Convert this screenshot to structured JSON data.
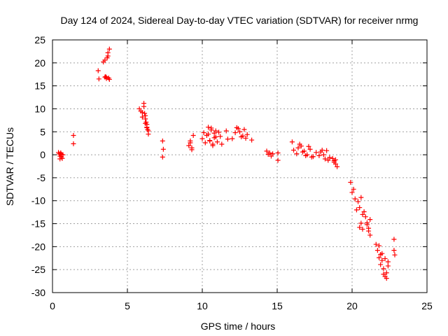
{
  "chart_data": {
    "type": "scatter",
    "title": "Day 124 of 2024, Sidereal Day-to-day VTEC variation (SDTVAR) for receiver nrmg",
    "xlabel": "GPS time / hours",
    "ylabel": "SDTVAR / TECUs",
    "xlim": [
      0,
      25
    ],
    "ylim": [
      -30,
      25
    ],
    "xticks": [
      0,
      5,
      10,
      15,
      20,
      25
    ],
    "yticks": [
      -30,
      -25,
      -20,
      -15,
      -10,
      -5,
      0,
      5,
      10,
      15,
      20,
      25
    ],
    "x_tick_labels": [
      "0",
      "5",
      "10",
      "15",
      "20",
      "25"
    ],
    "y_tick_labels": [
      "-30",
      "-25",
      "-20",
      "-15",
      "-10",
      "-5",
      "0",
      "5",
      "10",
      "15",
      "20",
      "25"
    ],
    "grid": true,
    "marker": "+",
    "color": "#ff0000",
    "series": [
      {
        "name": "SDTVAR",
        "x": [
          0.4,
          0.45,
          0.5,
          0.55,
          0.6,
          0.65,
          0.7,
          0.5,
          0.55,
          0.6,
          1.4,
          1.4,
          3.05,
          3.1,
          3.4,
          3.5,
          3.55,
          3.6,
          3.65,
          3.7,
          3.75,
          3.8,
          3.5,
          3.6,
          3.7,
          3.8,
          5.8,
          5.9,
          6.0,
          6.1,
          6.15,
          6.2,
          6.25,
          6.3,
          6.35,
          6.4,
          6.0,
          6.1,
          6.2,
          6.3,
          6.4,
          6.2,
          6.3,
          7.35,
          7.4,
          7.35,
          9.1,
          9.2,
          9.3,
          9.4,
          9.2,
          9.3,
          10.0,
          10.1,
          10.2,
          10.3,
          10.4,
          10.5,
          10.6,
          10.7,
          10.8,
          10.9,
          11.0,
          11.1,
          10.4,
          10.5,
          10.6,
          10.7,
          10.8,
          10.9,
          11.2,
          11.3,
          11.6,
          11.7,
          12.0,
          12.2,
          12.4,
          12.6,
          12.8,
          13.0,
          12.3,
          12.5,
          12.7,
          12.9,
          13.3,
          14.3,
          14.4,
          14.5,
          14.6,
          14.7,
          15.05,
          15.05,
          16.0,
          16.1,
          16.3,
          16.5,
          16.7,
          16.9,
          17.1,
          17.3,
          16.4,
          16.6,
          16.8,
          17.0,
          17.2,
          17.4,
          17.6,
          17.8,
          18.0,
          18.2,
          18.4,
          17.9,
          18.1,
          18.3,
          18.5,
          18.7,
          18.8,
          18.9,
          19.0,
          18.8,
          18.9,
          19.9,
          20.0,
          20.1,
          20.2,
          20.3,
          20.4,
          20.5,
          20.6,
          20.7,
          20.8,
          20.5,
          20.6,
          20.7,
          20.9,
          21.0,
          21.1,
          21.2,
          21.0,
          21.1,
          21.2,
          21.6,
          21.7,
          21.8,
          21.9,
          22.0,
          22.1,
          22.2,
          22.3,
          22.4,
          21.8,
          21.9,
          22.0,
          22.1,
          22.2,
          22.3,
          22.4,
          22.8,
          22.8,
          22.85
        ],
        "y": [
          0.5,
          0.2,
          -0.3,
          0.3,
          -0.5,
          -0.8,
          0.0,
          -0.9,
          0.4,
          0.1,
          4.2,
          2.4,
          18.3,
          16.5,
          20.2,
          20.6,
          17.0,
          16.6,
          21.1,
          22.2,
          16.7,
          23.0,
          16.9,
          16.8,
          21.5,
          16.4,
          10.0,
          9.5,
          8.2,
          11.2,
          9.0,
          8.5,
          7.1,
          6.6,
          5.5,
          4.5,
          9.2,
          10.5,
          7.8,
          6.0,
          5.2,
          6.8,
          5.9,
          3.0,
          1.2,
          -0.5,
          2.0,
          3.0,
          1.5,
          4.2,
          2.6,
          1.1,
          3.5,
          4.8,
          2.6,
          4.2,
          6.0,
          3.1,
          5.4,
          2.3,
          4.7,
          3.9,
          2.8,
          4.9,
          4.5,
          3.0,
          5.8,
          2.0,
          3.7,
          5.2,
          4.0,
          2.3,
          5.2,
          3.4,
          3.5,
          4.8,
          5.7,
          3.9,
          5.5,
          4.4,
          5.9,
          5.0,
          4.1,
          3.6,
          3.2,
          0.8,
          0.1,
          0.4,
          -0.3,
          0.2,
          0.4,
          -1.2,
          2.8,
          1.0,
          0.2,
          2.3,
          0.6,
          -0.2,
          1.8,
          -0.5,
          1.5,
          1.9,
          0.8,
          0.0,
          1.2,
          -0.4,
          0.5,
          -0.2,
          1.0,
          -0.9,
          -1.2,
          0.6,
          0.0,
          0.9,
          -0.6,
          -0.8,
          -1.3,
          -2.0,
          -2.6,
          -1.6,
          -1.1,
          -6.0,
          -8.2,
          -7.5,
          -9.6,
          -12.0,
          -10.2,
          -11.5,
          -9.3,
          -13.0,
          -12.4,
          -15.8,
          -14.9,
          -16.2,
          -13.5,
          -14.8,
          -16.6,
          -17.5,
          -15.2,
          -16.0,
          -14.1,
          -19.5,
          -20.8,
          -22.4,
          -23.9,
          -21.5,
          -24.8,
          -22.6,
          -25.7,
          -24.2,
          -19.8,
          -21.7,
          -23.0,
          -26.0,
          -26.5,
          -26.9,
          -23.3,
          -18.4,
          -20.8,
          -21.8
        ]
      }
    ]
  }
}
